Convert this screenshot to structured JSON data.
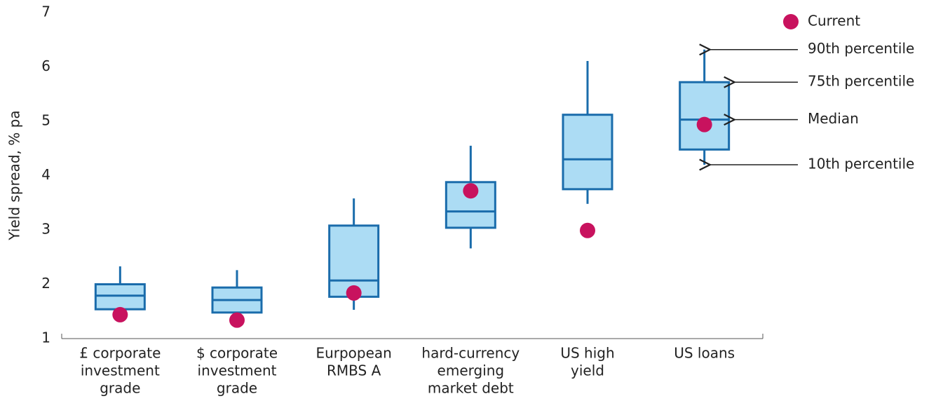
{
  "chart_data": {
    "type": "box",
    "y_label": "Yield spread, % pa",
    "categories": [
      [
        "£ corporate",
        "investment",
        "grade"
      ],
      [
        "$ corporate",
        "investment",
        "grade"
      ],
      [
        "Eurpopean",
        "RMBS A"
      ],
      [
        "hard-currency",
        "emerging",
        "market debt"
      ],
      [
        "US high",
        "yield"
      ],
      [
        "US loans"
      ]
    ],
    "boxes": {
      "color": "#acdcf4",
      "edge_color": "#1a6cab",
      "p10": [
        1.52,
        1.46,
        1.53,
        2.66,
        3.48,
        4.2
      ],
      "q1": [
        1.54,
        1.48,
        1.77,
        3.04,
        3.75,
        4.48
      ],
      "median": [
        1.79,
        1.71,
        2.07,
        3.34,
        4.3,
        5.03
      ],
      "q3": [
        2.0,
        1.94,
        3.08,
        3.88,
        5.12,
        5.72
      ],
      "p90": [
        2.33,
        2.26,
        3.58,
        4.55,
        6.11,
        6.32
      ]
    },
    "series": [
      {
        "name": "Current",
        "color": "#c8125e",
        "values": [
          1.44,
          1.34,
          1.84,
          3.72,
          2.99,
          4.94
        ]
      }
    ],
    "annotations": [
      "90th percentile",
      "75th percentile",
      "Median",
      "10th percentile"
    ],
    "ylim": [
      1,
      7
    ],
    "yticks": [
      1,
      2,
      3,
      4,
      5,
      6,
      7
    ]
  }
}
